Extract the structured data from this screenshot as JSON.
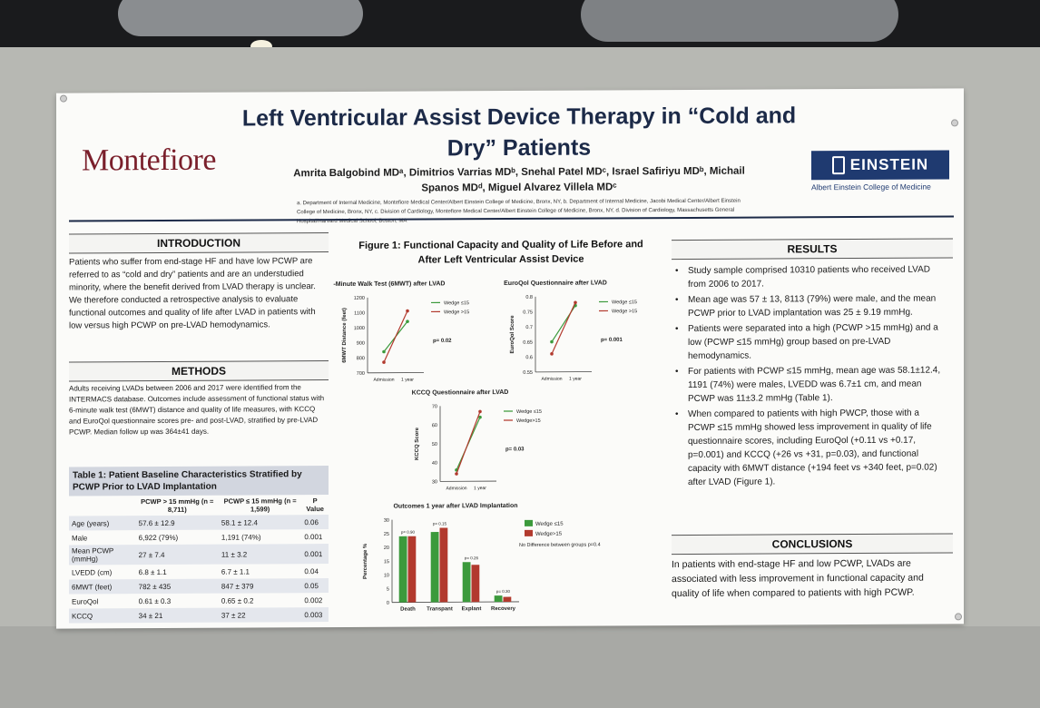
{
  "poster": {
    "title": "Left Ventricular Assist Device Therapy in “Cold and Dry” Patients",
    "authors": "Amrita Balgobind MDᵃ, Dimitrios Varrias MDᵇ, Snehal Patel MDᶜ, Israel Safiriyu MDᵇ, Michail Spanos MDᵈ, Miguel Alvarez Villela MDᶜ",
    "affiliations": "a. Department of Internal Medicine, Montefiore Medical Center/Albert Einstein College of Medicine, Bronx, NY, b. Department of Internal Medicine, Jacobi Medical Center/Albert Einstein College of Medicine, Bronx, NY, c. Division of Cardiology, Montefiore Medical Center/Albert Einstein College of Medicine, Bronx, NY, d. Division of Cardiology, Massachusetts General Hospital/Harvard Medical School, Boston, MA",
    "logo_left": "Montefiore",
    "logo_right": "EINSTEIN",
    "logo_right_sub": "Albert Einstein College of Medicine"
  },
  "introduction": {
    "heading": "INTRODUCTION",
    "text": "Patients who suffer from end-stage HF and have low PCWP are referred to as “cold and dry” patients and are an understudied minority, where the benefit derived from LVAD therapy is unclear. We therefore conducted a retrospective analysis to evaluate functional outcomes and quality of life after LVAD in patients with low versus high PCWP on pre-LVAD hemodynamics."
  },
  "methods": {
    "heading": "METHODS",
    "text": "Adults receiving LVADs between 2006 and 2017 were identified from the INTERMACS database. Outcomes include assessment of functional status with 6-minute walk test (6MWT) distance and quality of life measures, with KCCQ and EuroQol questionnaire scores pre- and post-LVAD, stratified by pre-LVAD PCWP. Median follow up was 364±41 days."
  },
  "table": {
    "caption": "Table 1: Patient Baseline Characteristics Stratified by PCWP Prior to LVAD Implantation",
    "headers": [
      "",
      "PCWP > 15 mmHg (n = 8,711)",
      "PCWP ≤ 15 mmHg (n = 1,599)",
      "P Value"
    ],
    "rows": [
      [
        "Age (years)",
        "57.6 ± 12.9",
        "58.1 ± 12.4",
        "0.06"
      ],
      [
        "Male",
        "6,922 (79%)",
        "1,191 (74%)",
        "0.001"
      ],
      [
        "Mean PCWP (mmHg)",
        "27 ± 7.4",
        "11 ± 3.2",
        "0.001"
      ],
      [
        "LVEDD (cm)",
        "6.8 ± 1.1",
        "6.7 ± 1.1",
        "0.04"
      ],
      [
        "6MWT (feet)",
        "782 ± 435",
        "847 ± 379",
        "0.05"
      ],
      [
        "EuroQol",
        "0.61 ± 0.3",
        "0.65 ± 0.2",
        "0.002"
      ],
      [
        "KCCQ",
        "34 ± 21",
        "37 ± 22",
        "0.003"
      ]
    ]
  },
  "figure": {
    "title": "Figure 1: Functional Capacity and Quality of Life Before and After Left Ventricular Assist Device"
  },
  "results": {
    "heading": "RESULTS",
    "bullets": [
      "Study sample comprised 10310 patients who received LVAD from 2006 to 2017.",
      "Mean age was 57 ± 13, 8113 (79%) were male, and the mean PCWP prior to LVAD implantation was 25 ± 9.19 mmHg.",
      "Patients were separated into a high (PCWP >15 mmHg) and a low (PCWP ≤15 mmHg) group based on pre-LVAD hemodynamics.",
      "For patients with PCWP ≤15 mmHg, mean age was 58.1±12.4, 1191 (74%) were males, LVEDD was 6.7±1 cm, and mean PCWP was 11±3.2 mmHg (Table 1).",
      "When compared to patients with high PWCP, those with a PCWP ≤15 mmHg showed less improvement in quality of life questionnaire scores, including EuroQol (+0.11 vs +0.17, p=0.001) and KCCQ (+26 vs +31, p=0.03), and functional capacity with 6MWT distance (+194 feet vs +340 feet, p=0.02) after LVAD (Figure 1)."
    ]
  },
  "conclusions": {
    "heading": "CONCLUSIONS",
    "text": "In patients with end-stage HF and low PCWP, LVADs are associated with less improvement in functional capacity and quality of life when compared to patients with high PCWP."
  },
  "colors": {
    "wedge_low": "#3c9a3c",
    "wedge_high": "#b23a2e",
    "navy": "#1c2a48",
    "montefiore": "#7a1f2b"
  },
  "chart_data": [
    {
      "type": "line",
      "title": "6-Minute Walk Test (6MWT) after LVAD",
      "ylabel": "6MWT Distance (feet)",
      "categories": [
        "Admission",
        "1 year"
      ],
      "yticks": [
        700,
        800,
        900,
        1000,
        1100,
        1200
      ],
      "ylim": [
        700,
        1200
      ],
      "series": [
        {
          "name": "Wedge ≤15",
          "values": [
            840,
            1040
          ]
        },
        {
          "name": "Wedge >15",
          "values": [
            770,
            1110
          ]
        }
      ],
      "annotation": "p= 0.02"
    },
    {
      "type": "line",
      "title": "EuroQol Questionnaire after LVAD",
      "ylabel": "EuroQol Score",
      "categories": [
        "Admission",
        "1 year"
      ],
      "yticks": [
        0.55,
        0.6,
        0.65,
        0.7,
        0.75,
        0.8
      ],
      "ylim": [
        0.55,
        0.8
      ],
      "series": [
        {
          "name": "Wedge ≤15",
          "values": [
            0.65,
            0.77
          ]
        },
        {
          "name": "Wedge >15",
          "values": [
            0.61,
            0.78
          ]
        }
      ],
      "annotation": "p= 0.001"
    },
    {
      "type": "line",
      "title": "KCCQ Questionnaire after LVAD",
      "ylabel": "KCCQ Score",
      "categories": [
        "Admission",
        "1 year"
      ],
      "yticks": [
        30,
        40,
        50,
        60,
        70
      ],
      "ylim": [
        30,
        70
      ],
      "series": [
        {
          "name": "Wedge ≤15",
          "values": [
            36,
            64
          ]
        },
        {
          "name": "Wedge>15",
          "values": [
            34,
            67
          ]
        }
      ],
      "annotation": "p= 0.03"
    },
    {
      "type": "bar",
      "title": "Outcomes 1 year after LVAD Implantation",
      "ylabel": "Percentage %",
      "categories": [
        "Death",
        "Transpant",
        "Explant",
        "Recovery"
      ],
      "yticks": [
        0,
        5,
        10,
        15,
        20,
        25,
        30
      ],
      "ylim": [
        0,
        30
      ],
      "series": [
        {
          "name": "Wedge ≤15",
          "values": [
            24,
            25.5,
            14.5,
            2.3
          ]
        },
        {
          "name": "Wedge>15",
          "values": [
            24,
            27,
            13.5,
            1.8
          ]
        }
      ],
      "pvalues": [
        "p= 0.90",
        "p= 0.15",
        "p= 0.26",
        "p= 0.30"
      ],
      "note": "No Difference between groups p=0.47"
    }
  ]
}
